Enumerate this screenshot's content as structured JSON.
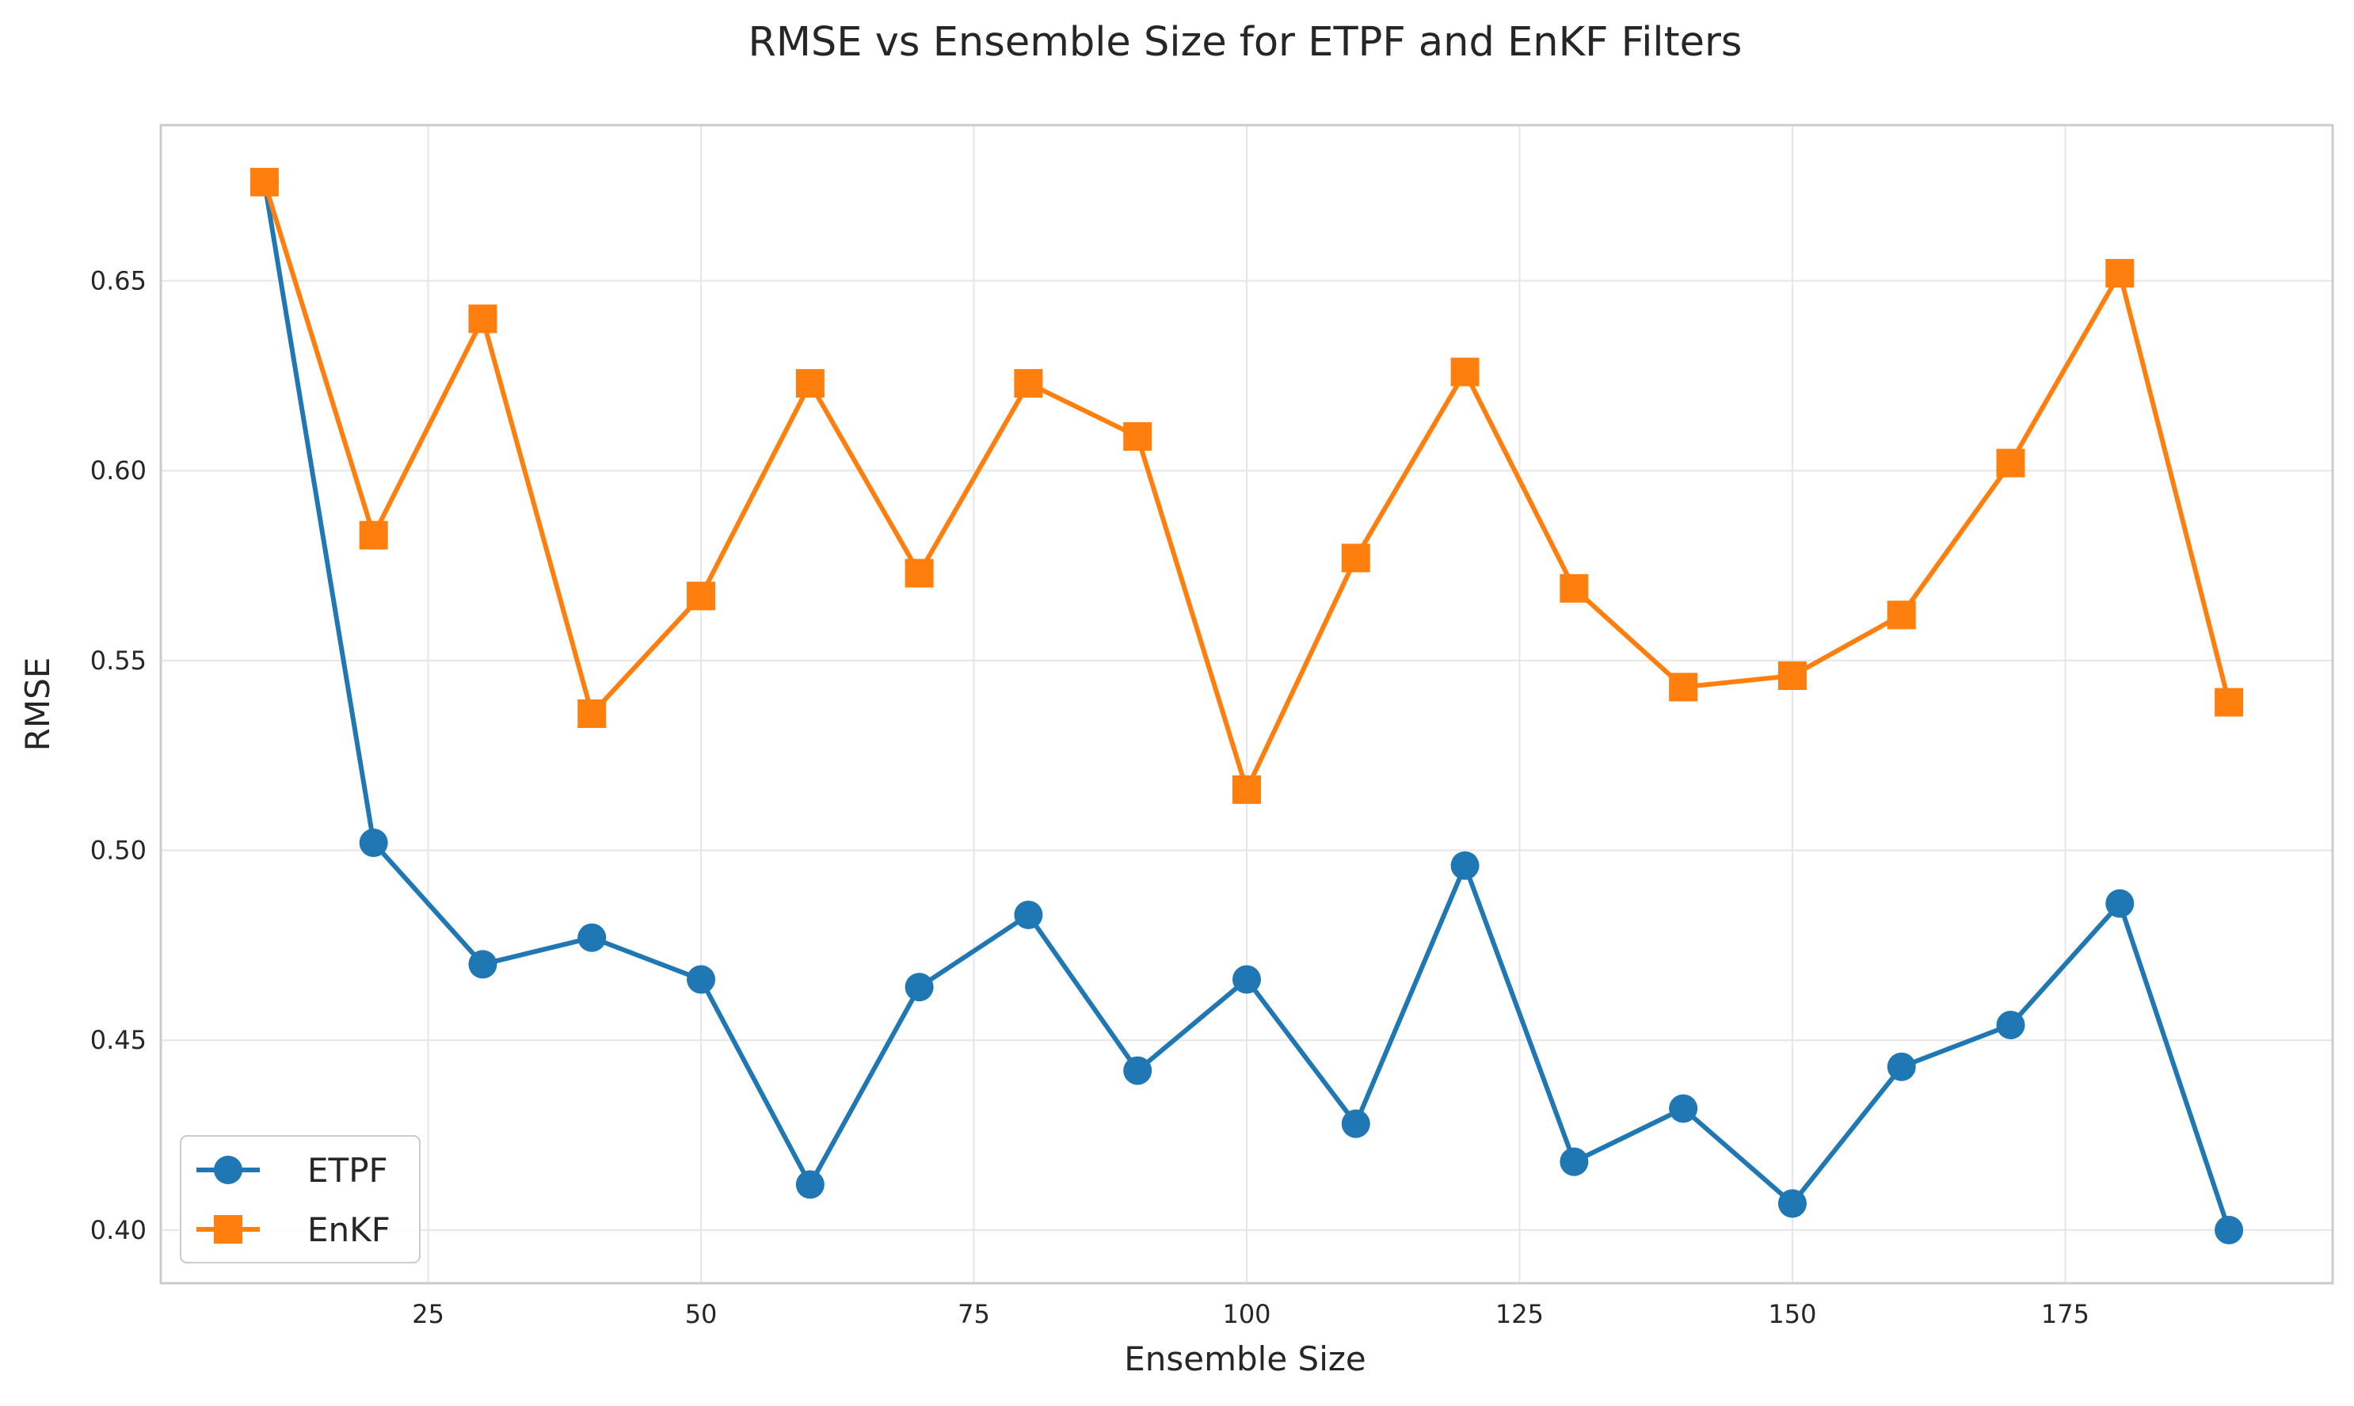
{
  "chart_data": {
    "type": "line",
    "title": "RMSE vs Ensemble Size for ETPF and EnKF Filters",
    "xlabel": "Ensemble Size",
    "ylabel": "RMSE",
    "xlim": [
      0.5,
      199.5
    ],
    "ylim": [
      0.386,
      0.691
    ],
    "x_ticks": [
      25,
      50,
      75,
      100,
      125,
      150,
      175
    ],
    "y_ticks": [
      0.4,
      0.45,
      0.5,
      0.55,
      0.6,
      0.65
    ],
    "y_tick_labels": [
      "0.40",
      "0.45",
      "0.50",
      "0.55",
      "0.60",
      "0.65"
    ],
    "grid": true,
    "legend_position": "lower-left",
    "x": [
      10,
      20,
      30,
      40,
      50,
      60,
      70,
      80,
      90,
      100,
      110,
      120,
      130,
      140,
      150,
      160,
      170,
      180,
      190
    ],
    "series": [
      {
        "name": "ETPF",
        "color": "#1f77b4",
        "marker": "circle",
        "values": [
          0.676,
          0.502,
          0.47,
          0.477,
          0.466,
          0.412,
          0.464,
          0.483,
          0.442,
          0.466,
          0.428,
          0.496,
          0.418,
          0.432,
          0.407,
          0.443,
          0.454,
          0.486,
          0.4
        ]
      },
      {
        "name": "EnKF",
        "color": "#ff7f0e",
        "marker": "square",
        "values": [
          0.676,
          0.583,
          0.64,
          0.536,
          0.567,
          0.623,
          0.573,
          0.623,
          0.609,
          0.516,
          0.577,
          0.626,
          0.569,
          0.543,
          0.546,
          0.562,
          0.602,
          0.652,
          0.539
        ]
      }
    ]
  }
}
